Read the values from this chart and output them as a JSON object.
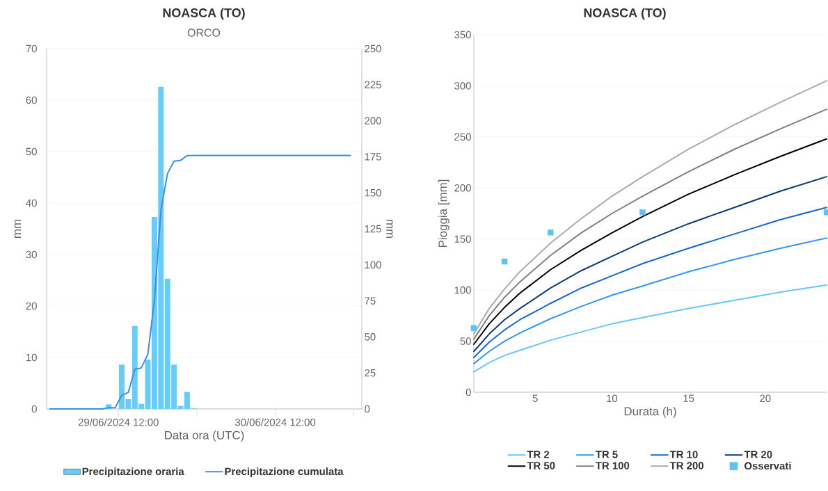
{
  "chart_data": [
    {
      "type": "bar",
      "title": "NOASCA (TO)",
      "subtitle": "ORCO",
      "xlabel": "Data ora (UTC)",
      "ylabel": "mm",
      "y2label": "mm",
      "xlim": [
        "2024-06-29T01:00",
        "2024-07-01T01:15"
      ],
      "xticks": [
        {
          "value": "2024-06-29T12:00",
          "label": "29/06/2024 12:00"
        },
        {
          "value": "2024-06-30T00:00",
          "label": null
        },
        {
          "value": "2024-06-30T12:00",
          "label": "30/06/2024 12:00"
        },
        {
          "value": "2024-07-01T00:00",
          "label": null
        }
      ],
      "ylim": [
        0,
        70
      ],
      "yticks": [
        0,
        10,
        20,
        30,
        40,
        50,
        60,
        70
      ],
      "y2lim": [
        0,
        250
      ],
      "y2ticks": [
        0,
        25,
        50,
        75,
        100,
        125,
        150,
        175,
        200,
        225,
        250
      ],
      "grid": "y",
      "legend": "bottom",
      "series": [
        {
          "name": "Precipitazione oraria",
          "type": "bar",
          "color": "#66ccfa",
          "x": [
            "2024-06-29T10:30",
            "2024-06-29T12:30",
            "2024-06-29T13:30",
            "2024-06-29T14:30",
            "2024-06-29T15:30",
            "2024-06-29T16:30",
            "2024-06-29T17:30",
            "2024-06-29T18:30",
            "2024-06-29T19:30",
            "2024-06-29T20:30",
            "2024-06-29T21:30",
            "2024-06-29T22:30",
            "2024-06-29T23:30"
          ],
          "values": [
            0.9,
            8.6,
            1.9,
            16.1,
            1.0,
            9.6,
            37.3,
            62.6,
            25.3,
            8.6,
            0.6,
            3.3,
            0.1
          ]
        },
        {
          "name": "Precipitazione cumulata",
          "type": "line",
          "axis": "y2",
          "color": "#3a8fe8",
          "x": [
            "2024-06-29T01:30",
            "2024-06-29T09:30",
            "2024-06-29T10:30",
            "2024-06-29T11:30",
            "2024-06-29T12:30",
            "2024-06-29T13:30",
            "2024-06-29T14:30",
            "2024-06-29T15:30",
            "2024-06-29T16:30",
            "2024-06-29T17:30",
            "2024-06-29T18:30",
            "2024-06-29T19:30",
            "2024-06-29T20:30",
            "2024-06-29T21:30",
            "2024-06-29T22:30",
            "2024-06-29T23:30",
            "2024-06-30T23:30"
          ],
          "values": [
            0,
            0,
            0.9,
            0.9,
            9.5,
            11.4,
            27.5,
            28.5,
            38.1,
            75.4,
            138,
            163.3,
            171.9,
            172.5,
            175.8,
            175.9,
            175.9
          ]
        }
      ]
    },
    {
      "type": "line",
      "title": "NOASCA (TO)",
      "xlabel": "Durata (h)",
      "ylabel": "Pioggia [mm]",
      "xlim": [
        1,
        24
      ],
      "xticks": [
        5,
        10,
        15,
        20
      ],
      "ylim": [
        0,
        350
      ],
      "yticks": [
        0,
        50,
        100,
        150,
        200,
        250,
        300,
        350
      ],
      "grid": "y",
      "legend": "bottom",
      "marker": "none",
      "x": [
        1,
        2,
        3,
        4,
        6,
        8,
        10,
        12,
        15,
        18,
        21,
        24
      ],
      "series": [
        {
          "name": "TR 2",
          "color": "#66c8f8",
          "values": [
            20,
            29,
            36,
            41,
            51,
            59,
            67,
            73,
            82,
            90,
            98,
            105
          ]
        },
        {
          "name": "TR 5",
          "color": "#3896ee",
          "values": [
            28,
            40,
            50,
            58,
            72,
            84,
            95,
            104,
            118,
            130,
            141,
            151
          ]
        },
        {
          "name": "TR 10",
          "color": "#1568cc",
          "values": [
            34,
            49,
            61,
            71,
            87,
            102,
            114,
            126,
            141,
            155,
            169,
            181
          ]
        },
        {
          "name": "TR 20",
          "color": "#0c3a74",
          "values": [
            40,
            57,
            71,
            82,
            102,
            119,
            133,
            147,
            165,
            181,
            197,
            211
          ]
        },
        {
          "name": "TR 50",
          "color": "#000000",
          "values": [
            47,
            67,
            83,
            97,
            120,
            139,
            156,
            172,
            194,
            213,
            231,
            248
          ]
        },
        {
          "name": "TR 100",
          "color": "#7f7f7f",
          "values": [
            52,
            75,
            93,
            108,
            134,
            156,
            175,
            192,
            216,
            238,
            258,
            277
          ]
        },
        {
          "name": "TR 200",
          "color": "#ababab",
          "values": [
            57,
            82,
            101,
            118,
            146,
            170,
            192,
            211,
            238,
            262,
            284,
            305
          ]
        },
        {
          "name": "Osservati",
          "type": "scatter",
          "marker": "square",
          "color": "#5cc4f4",
          "x": [
            1,
            3,
            6,
            12,
            24
          ],
          "values": [
            62.8,
            128,
            156.4,
            176.2,
            176.2
          ]
        }
      ]
    }
  ]
}
